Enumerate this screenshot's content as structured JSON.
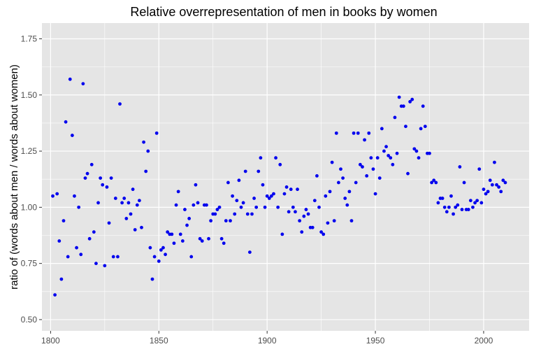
{
  "chart_data": {
    "type": "scatter",
    "title": "Relative overrepresentation of men in books by women",
    "xlabel": "",
    "ylabel": "ratio of (words about men / words about women)",
    "xlim": [
      1796,
      2021
    ],
    "ylim": [
      0.45,
      1.82
    ],
    "x_ticks": [
      1800,
      1850,
      1900,
      1950,
      2000
    ],
    "x_tick_labels": [
      "1800",
      "1850",
      "1900",
      "1950",
      "2000"
    ],
    "y_ticks": [
      0.5,
      0.75,
      1.0,
      1.25,
      1.5,
      1.75
    ],
    "y_tick_labels": [
      "0.50",
      "0.75",
      "1.00",
      "1.25",
      "1.50",
      "1.75"
    ],
    "grid": true,
    "background_color": "#e5e5e5",
    "grid_color": "#ffffff",
    "point_color": "#0000ee",
    "x": [
      1801,
      1802,
      1803,
      1804,
      1805,
      1806,
      1807,
      1808,
      1809,
      1810,
      1811,
      1812,
      1813,
      1814,
      1815,
      1816,
      1817,
      1818,
      1819,
      1820,
      1821,
      1822,
      1823,
      1824,
      1825,
      1826,
      1827,
      1828,
      1829,
      1830,
      1831,
      1832,
      1833,
      1834,
      1835,
      1836,
      1837,
      1838,
      1839,
      1840,
      1841,
      1842,
      1843,
      1844,
      1845,
      1846,
      1847,
      1848,
      1849,
      1850,
      1851,
      1852,
      1853,
      1854,
      1855,
      1856,
      1857,
      1858,
      1859,
      1860,
      1861,
      1862,
      1863,
      1864,
      1865,
      1866,
      1867,
      1868,
      1869,
      1870,
      1871,
      1872,
      1873,
      1874,
      1875,
      1876,
      1877,
      1878,
      1879,
      1880,
      1881,
      1882,
      1883,
      1884,
      1885,
      1886,
      1887,
      1888,
      1889,
      1890,
      1891,
      1892,
      1893,
      1894,
      1895,
      1896,
      1897,
      1898,
      1899,
      1900,
      1901,
      1902,
      1903,
      1904,
      1905,
      1906,
      1907,
      1908,
      1909,
      1910,
      1911,
      1912,
      1913,
      1914,
      1915,
      1916,
      1917,
      1918,
      1919,
      1920,
      1921,
      1922,
      1923,
      1924,
      1925,
      1926,
      1927,
      1928,
      1929,
      1930,
      1931,
      1932,
      1933,
      1934,
      1935,
      1936,
      1937,
      1938,
      1939,
      1940,
      1941,
      1942,
      1943,
      1944,
      1945,
      1946,
      1947,
      1948,
      1949,
      1950,
      1951,
      1952,
      1953,
      1954,
      1955,
      1956,
      1957,
      1958,
      1959,
      1960,
      1961,
      1962,
      1963,
      1964,
      1965,
      1966,
      1967,
      1968,
      1969,
      1970,
      1971,
      1972,
      1973,
      1974,
      1975,
      1976,
      1977,
      1978,
      1979,
      1980,
      1981,
      1982,
      1983,
      1984,
      1985,
      1986,
      1987,
      1988,
      1989,
      1990,
      1991,
      1992,
      1993,
      1994,
      1995,
      1996,
      1997,
      1998,
      1999,
      2000,
      2001,
      2002,
      2003,
      2004,
      2005,
      2006,
      2007,
      2008,
      2009,
      2010
    ],
    "y": [
      1.05,
      0.61,
      1.06,
      0.85,
      0.68,
      0.94,
      1.38,
      0.78,
      1.57,
      1.32,
      1.05,
      0.82,
      1.0,
      0.79,
      1.55,
      1.13,
      1.15,
      0.86,
      1.19,
      0.89,
      0.75,
      1.02,
      1.13,
      1.1,
      0.74,
      1.09,
      0.93,
      1.13,
      0.78,
      1.04,
      0.78,
      1.46,
      1.02,
      1.04,
      0.95,
      1.02,
      0.97,
      1.08,
      0.9,
      1.01,
      1.03,
      0.91,
      1.29,
      1.16,
      1.25,
      0.82,
      0.68,
      0.78,
      1.33,
      0.76,
      0.81,
      0.82,
      0.79,
      0.89,
      0.88,
      0.88,
      0.84,
      1.01,
      1.07,
      0.88,
      0.85,
      0.99,
      0.92,
      0.95,
      0.78,
      1.01,
      1.1,
      1.02,
      0.86,
      0.85,
      1.01,
      1.01,
      0.86,
      0.94,
      0.97,
      0.97,
      0.99,
      1.0,
      0.86,
      0.84,
      0.94,
      1.11,
      0.94,
      1.05,
      0.97,
      1.03,
      1.12,
      1.0,
      1.02,
      1.16,
      0.97,
      0.8,
      0.97,
      1.04,
      1.0,
      1.16,
      1.22,
      1.1,
      1.0,
      1.05,
      1.04,
      1.05,
      1.06,
      1.22,
      1.0,
      1.19,
      0.88,
      1.06,
      1.09,
      0.98,
      1.08,
      1.0,
      0.98,
      1.08,
      0.94,
      0.89,
      0.96,
      0.99,
      0.97,
      0.91,
      0.91,
      1.03,
      1.14,
      1.0,
      0.89,
      0.88,
      1.05,
      0.93,
      1.07,
      1.2,
      0.94,
      1.33,
      1.11,
      1.17,
      1.13,
      1.04,
      1.01,
      1.07,
      0.94,
      1.33,
      1.11,
      1.33,
      1.19,
      1.18,
      1.3,
      1.14,
      1.33,
      1.22,
      1.17,
      1.06,
      1.22,
      1.13,
      1.35,
      1.25,
      1.27,
      1.23,
      1.22,
      1.19,
      1.4,
      1.24,
      1.49,
      1.45,
      1.45,
      1.36,
      1.15,
      1.47,
      1.48,
      1.26,
      1.25,
      1.22,
      1.35,
      1.45,
      1.36,
      1.24,
      1.24,
      1.11,
      1.12,
      1.11,
      1.02,
      1.04,
      1.04,
      1.0,
      0.98,
      1.0,
      1.05,
      0.97,
      1.0,
      1.01,
      1.18,
      0.99,
      1.11,
      0.99,
      0.99,
      1.03,
      1.0,
      1.02,
      1.03,
      1.17,
      1.02,
      1.08,
      1.06,
      1.07,
      1.12,
      1.1,
      1.2,
      1.1,
      1.09,
      1.07,
      1.12,
      1.11
    ]
  }
}
